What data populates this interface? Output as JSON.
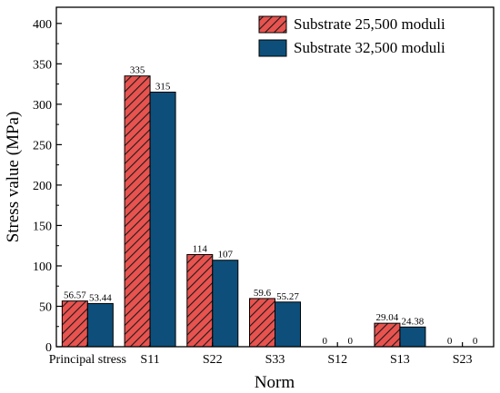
{
  "chart_data": {
    "type": "bar",
    "xlabel": "Norm",
    "ylabel": "Stress value (MPa)",
    "ylim": [
      0,
      420
    ],
    "yticks": [
      0,
      50,
      100,
      150,
      200,
      250,
      300,
      350,
      400
    ],
    "categories": [
      "Principal stress",
      "S11",
      "S22",
      "S33",
      "S12",
      "S13",
      "S23"
    ],
    "series": [
      {
        "name": "Substrate 25,500 moduli",
        "values": [
          56.57,
          335,
          114,
          59.6,
          0,
          29.04,
          0
        ],
        "labels": [
          "56.57",
          "335",
          "114",
          "59.6",
          "0",
          "29.04",
          "0"
        ],
        "color": "#e8534f",
        "pattern": "hatch"
      },
      {
        "name": "Substrate 32,500 moduli",
        "values": [
          53.44,
          315,
          107,
          55.27,
          0,
          24.38,
          0
        ],
        "labels": [
          "53.44",
          "315",
          "107",
          "55.27",
          "0",
          "24.38",
          "0"
        ],
        "color": "#0d4f7a",
        "pattern": "solid"
      }
    ],
    "legend": "top-right",
    "grid": false
  }
}
